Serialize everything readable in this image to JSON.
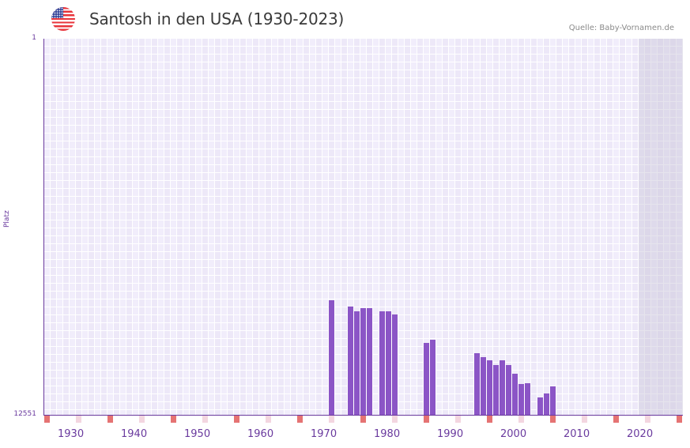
{
  "header": {
    "title": "Santosh in den USA (1930-2023)",
    "source": "Quelle: Baby-Vornamen.de",
    "flag_icon": "usa-flag-icon"
  },
  "colors": {
    "bar": "#8b55c6",
    "axis": "#6a3a9e",
    "decade_marker": "#e57373",
    "half_decade_marker": "#f3d6e0",
    "future_shade": "#e2dcec"
  },
  "chart_data": {
    "type": "bar",
    "title": "Santosh in den USA (1930-2023)",
    "xlabel": "",
    "ylabel": "Platz",
    "y_inverted": true,
    "ylim": [
      1,
      12551
    ],
    "yticks": [
      "1",
      "12551"
    ],
    "xrange": [
      1928,
      2028
    ],
    "xticks": [
      "1930",
      "1940",
      "1950",
      "1960",
      "1970",
      "1980",
      "1990",
      "2000",
      "2010",
      "2020"
    ],
    "future_from": 2022,
    "grid": true,
    "series": [
      {
        "name": "Santosh",
        "x": [
          1973,
          1976,
          1977,
          1978,
          1979,
          1981,
          1982,
          1983,
          1988,
          1989,
          1996,
          1997,
          1998,
          1999,
          2000,
          2001,
          2002,
          2003,
          2004,
          2006,
          2007,
          2008
        ],
        "values": [
          8728,
          8939,
          9097,
          8992,
          8992,
          9097,
          9097,
          9202,
          10151,
          10046,
          10494,
          10626,
          10731,
          10889,
          10731,
          10889,
          11180,
          11522,
          11495,
          11971,
          11838,
          11601
        ]
      }
    ]
  }
}
